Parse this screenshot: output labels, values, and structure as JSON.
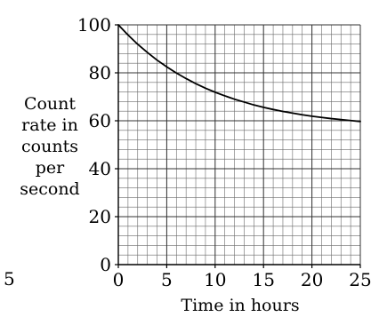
{
  "chart_data": {
    "type": "line",
    "xlabel": "Time in hours",
    "ylabel_lines": [
      "Count",
      "rate in",
      "counts",
      "per",
      "second"
    ],
    "xlim": [
      0,
      25
    ],
    "ylim": [
      0,
      100
    ],
    "x_ticks": [
      0,
      5,
      10,
      15,
      20,
      25
    ],
    "y_ticks": [
      0,
      20,
      40,
      60,
      80,
      100
    ],
    "grid": true,
    "series": [
      {
        "x": [
          0,
          1,
          2,
          3,
          4,
          5,
          6,
          7,
          8,
          9,
          10,
          11,
          12,
          13,
          14,
          15,
          16,
          17,
          18,
          19,
          20,
          21,
          22,
          23,
          24,
          25
        ],
        "y": [
          100,
          95.8,
          91.9,
          88.5,
          85.3,
          82.5,
          79.9,
          77.6,
          75.5,
          73.6,
          71.9,
          70.4,
          69.0,
          67.8,
          66.6,
          65.6,
          64.7,
          63.9,
          63.2,
          62.5,
          61.9,
          61.4,
          60.9,
          60.5,
          60.1,
          59.7
        ]
      }
    ],
    "margin_text": "5"
  }
}
